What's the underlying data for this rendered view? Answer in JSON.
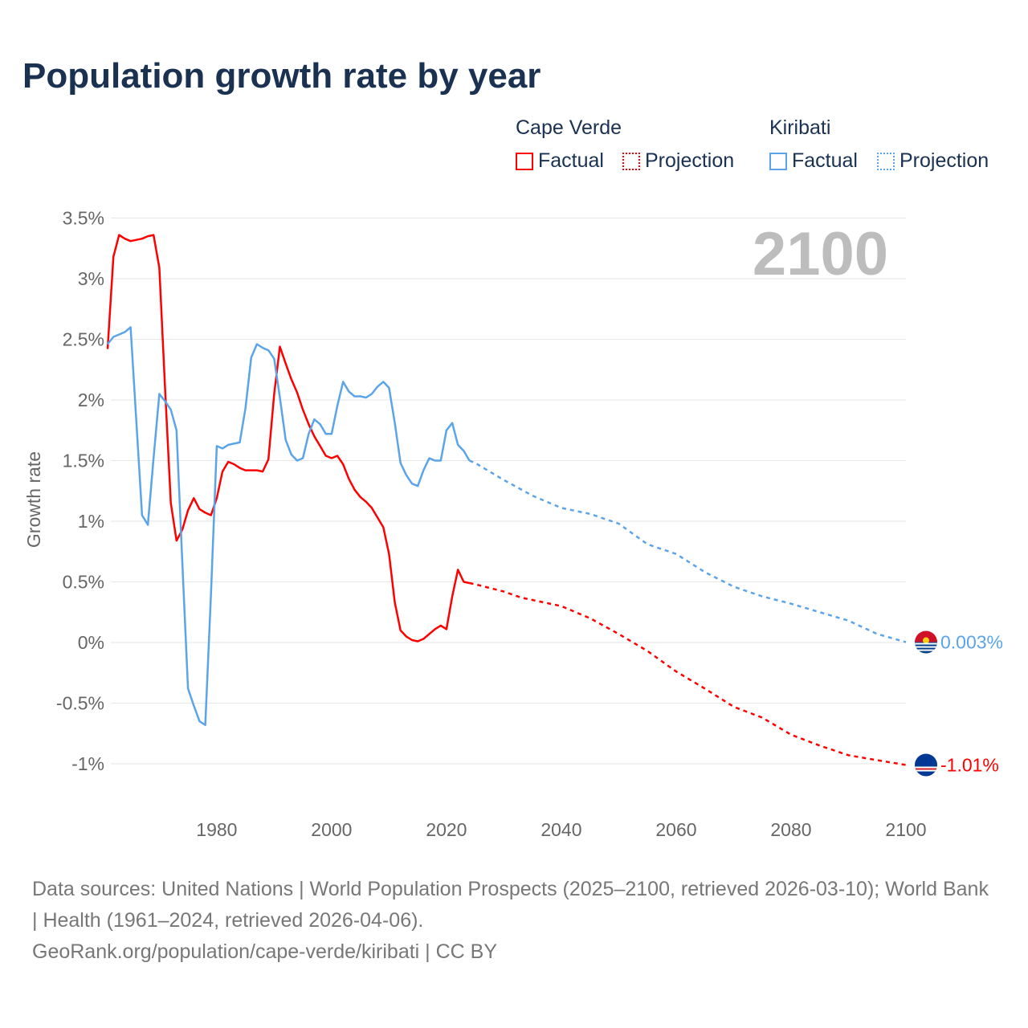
{
  "title": "Population growth rate by year",
  "legend": {
    "groups": [
      {
        "name": "Cape Verde",
        "color": "#ff0000",
        "factual": "Factual",
        "projection": "Projection"
      },
      {
        "name": "Kiribati",
        "color": "#5ba4ea",
        "factual": "Factual",
        "projection": "Projection"
      }
    ]
  },
  "year_watermark": "2100",
  "footer": {
    "sources": "Data sources: United Nations | World Population Prospects (2025–2100, retrieved 2026-03-10); World Bank | Health (1961–2024, retrieved 2026-04-06).",
    "credit": "GeoRank.org/population/cape-verde/kiribati | CC BY"
  },
  "chart_data": {
    "type": "line",
    "title": "Population growth rate by year",
    "xlabel": "",
    "ylabel": "Growth rate",
    "xlim": [
      1961,
      2100
    ],
    "ylim": [
      -1.25,
      3.5
    ],
    "xticks": [
      1980,
      2000,
      2020,
      2040,
      2060,
      2080,
      2100
    ],
    "yticks": [
      3.5,
      3,
      2.5,
      2,
      1.5,
      1,
      0.5,
      0,
      -0.5,
      -1
    ],
    "ytick_labels": [
      "3.5%",
      "3%",
      "2.5%",
      "2%",
      "1.5%",
      "1%",
      "0.5%",
      "0%",
      "-0.5%",
      "-1%"
    ],
    "grid": true,
    "legend_position": "top-right",
    "series": [
      {
        "name": "Cape Verde",
        "color": "#ff0000",
        "end_label": "-1.01%",
        "factual": {
          "x": [
            1961,
            1962,
            1963,
            1964,
            1965,
            1966,
            1967,
            1968,
            1969,
            1970,
            1971,
            1972,
            1973,
            1974,
            1975,
            1976,
            1977,
            1978,
            1979,
            1980,
            1981,
            1982,
            1983,
            1984,
            1985,
            1986,
            1987,
            1988,
            1989,
            1990,
            1991,
            1992,
            1993,
            1994,
            1995,
            1996,
            1997,
            1998,
            1999,
            2000,
            2001,
            2002,
            2003,
            2004,
            2005,
            2006,
            2007,
            2008,
            2009,
            2010,
            2011,
            2012,
            2013,
            2014,
            2015,
            2016,
            2017,
            2018,
            2019,
            2020,
            2021,
            2022,
            2023,
            2024
          ],
          "y": [
            2.42,
            3.18,
            3.36,
            3.33,
            3.31,
            3.32,
            3.33,
            3.35,
            3.36,
            3.09,
            2.1,
            1.15,
            0.84,
            0.93,
            1.09,
            1.19,
            1.1,
            1.07,
            1.05,
            1.19,
            1.41,
            1.49,
            1.47,
            1.44,
            1.42,
            1.42,
            1.42,
            1.41,
            1.51,
            2.05,
            2.44,
            2.3,
            2.17,
            2.06,
            1.92,
            1.8,
            1.7,
            1.62,
            1.54,
            1.52,
            1.54,
            1.47,
            1.35,
            1.26,
            1.2,
            1.16,
            1.11,
            1.03,
            0.95,
            0.73,
            0.33,
            0.1,
            0.05,
            0.02,
            0.01,
            0.03,
            0.07,
            0.11,
            0.14,
            0.11,
            0.38,
            0.6,
            0.5,
            0.49
          ]
        },
        "projection": {
          "x": [
            2024,
            2025,
            2030,
            2033,
            2035,
            2040,
            2045,
            2050,
            2055,
            2060,
            2065,
            2070,
            2075,
            2080,
            2085,
            2090,
            2095,
            2100
          ],
          "y": [
            0.49,
            0.48,
            0.42,
            0.37,
            0.35,
            0.3,
            0.2,
            0.07,
            -0.07,
            -0.24,
            -0.38,
            -0.53,
            -0.62,
            -0.76,
            -0.85,
            -0.93,
            -0.97,
            -1.01
          ]
        }
      },
      {
        "name": "Kiribati",
        "color": "#5ba4ea",
        "end_label": "0.003%",
        "factual": {
          "x": [
            1961,
            1962,
            1963,
            1964,
            1965,
            1966,
            1967,
            1968,
            1969,
            1970,
            1971,
            1972,
            1973,
            1974,
            1975,
            1976,
            1977,
            1978,
            1979,
            1980,
            1981,
            1982,
            1983,
            1984,
            1985,
            1986,
            1987,
            1988,
            1989,
            1990,
            1991,
            1992,
            1993,
            1994,
            1995,
            1996,
            1997,
            1998,
            1999,
            2000,
            2001,
            2002,
            2003,
            2004,
            2005,
            2006,
            2007,
            2008,
            2009,
            2010,
            2011,
            2012,
            2013,
            2014,
            2015,
            2016,
            2017,
            2018,
            2019,
            2020,
            2021,
            2022,
            2023,
            2024
          ],
          "y": [
            2.46,
            2.52,
            2.54,
            2.56,
            2.6,
            1.82,
            1.05,
            0.97,
            1.52,
            2.05,
            1.99,
            1.92,
            1.75,
            0.66,
            -0.38,
            -0.52,
            -0.65,
            -0.68,
            0.4,
            1.62,
            1.6,
            1.63,
            1.64,
            1.65,
            1.93,
            2.35,
            2.46,
            2.43,
            2.41,
            2.34,
            2.02,
            1.67,
            1.55,
            1.5,
            1.52,
            1.72,
            1.84,
            1.8,
            1.72,
            1.72,
            1.95,
            2.15,
            2.07,
            2.03,
            2.03,
            2.02,
            2.05,
            2.11,
            2.15,
            2.1,
            1.81,
            1.48,
            1.38,
            1.31,
            1.29,
            1.42,
            1.52,
            1.5,
            1.5,
            1.75,
            1.81,
            1.63,
            1.58,
            1.5
          ]
        },
        "projection": {
          "x": [
            2024,
            2025,
            2030,
            2035,
            2040,
            2045,
            2050,
            2055,
            2060,
            2065,
            2070,
            2075,
            2080,
            2085,
            2090,
            2095,
            2100
          ],
          "y": [
            1.5,
            1.48,
            1.34,
            1.21,
            1.11,
            1.06,
            0.98,
            0.81,
            0.73,
            0.58,
            0.46,
            0.38,
            0.32,
            0.25,
            0.18,
            0.07,
            0.003
          ]
        }
      }
    ]
  }
}
